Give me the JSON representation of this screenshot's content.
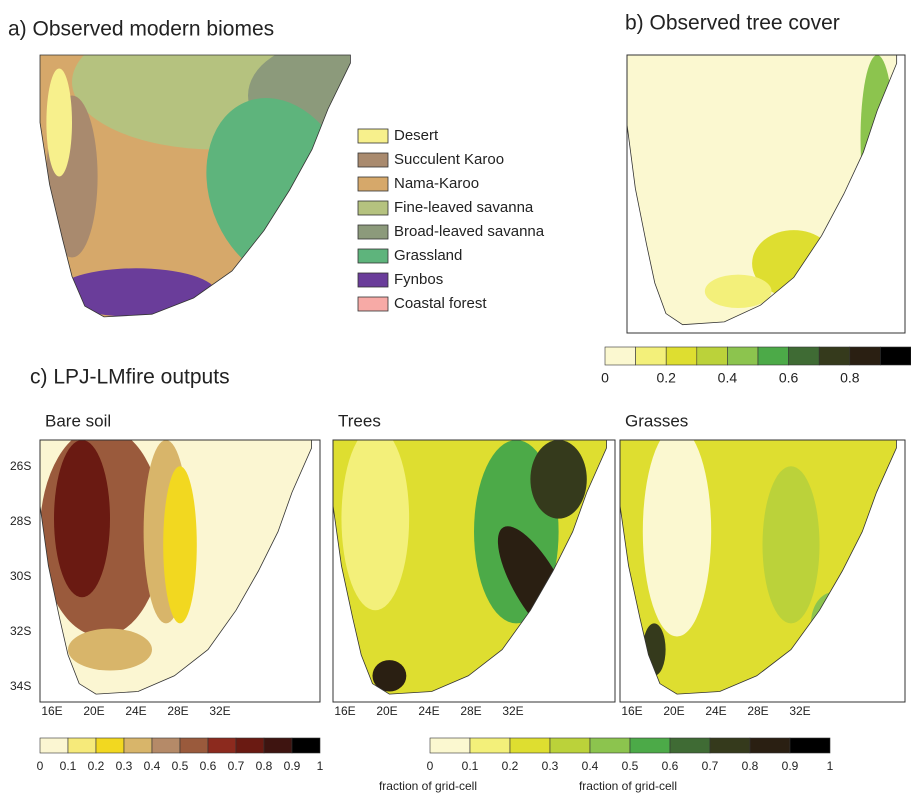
{
  "panel_a": {
    "title": "a) Observed modern biomes",
    "legend": [
      {
        "label": "Desert",
        "color": "#f7f08c"
      },
      {
        "label": "Succulent Karoo",
        "color": "#a98a6e"
      },
      {
        "label": "Nama-Karoo",
        "color": "#d6a86a"
      },
      {
        "label": "Fine-leaved savanna",
        "color": "#b5c27f"
      },
      {
        "label": "Broad-leaved savanna",
        "color": "#8c9a7b"
      },
      {
        "label": "Grassland",
        "color": "#5eb47c"
      },
      {
        "label": "Fynbos",
        "color": "#6a3d9a"
      },
      {
        "label": "Coastal forest",
        "color": "#f7aaa6"
      }
    ]
  },
  "panel_b": {
    "title": "b) Observed tree cover",
    "colorbar": {
      "colors": [
        "#fbf8d0",
        "#f3f07a",
        "#dede30",
        "#bbd23a",
        "#8cc44e",
        "#4caa48",
        "#3f6b34",
        "#353a1c",
        "#2a1f12",
        "#000000"
      ],
      "ticks": [
        "0",
        "0.2",
        "0.4",
        "0.6",
        "0.8"
      ]
    }
  },
  "panel_c": {
    "title": "c) LPJ-LMfire outputs",
    "maps": [
      "Bare soil",
      "Trees",
      "Grasses"
    ],
    "lat_ticks": [
      "26S",
      "28S",
      "30S",
      "32S",
      "34S"
    ],
    "lon_ticks": [
      "16E",
      "20E",
      "24E",
      "28E",
      "32E"
    ],
    "colorbars": [
      {
        "colors": [
          "#fbf6d2",
          "#f6ea7a",
          "#f2d820",
          "#d8b56a",
          "#b58a68",
          "#9a5a3c",
          "#8c2a1e",
          "#6a1a12",
          "#3e1410",
          "#000000"
        ],
        "ticks": [
          "0",
          "0.1",
          "0.2",
          "0.3",
          "0.4",
          "0.5",
          "0.6",
          "0.7",
          "0.8",
          "0.9",
          "1"
        ]
      },
      {
        "colors": [
          "#fbf8d0",
          "#f3f07a",
          "#dede30",
          "#bbd23a",
          "#8cc44e",
          "#4caa48",
          "#3f6b34",
          "#353a1c",
          "#2a1f12",
          "#000000"
        ],
        "ticks": [
          "0",
          "0.1",
          "0.2",
          "0.3",
          "0.4",
          "0.5",
          "0.6",
          "0.7",
          "0.8",
          "0.9",
          "1"
        ]
      }
    ],
    "colorbar_label": "fraction of grid-cell"
  }
}
